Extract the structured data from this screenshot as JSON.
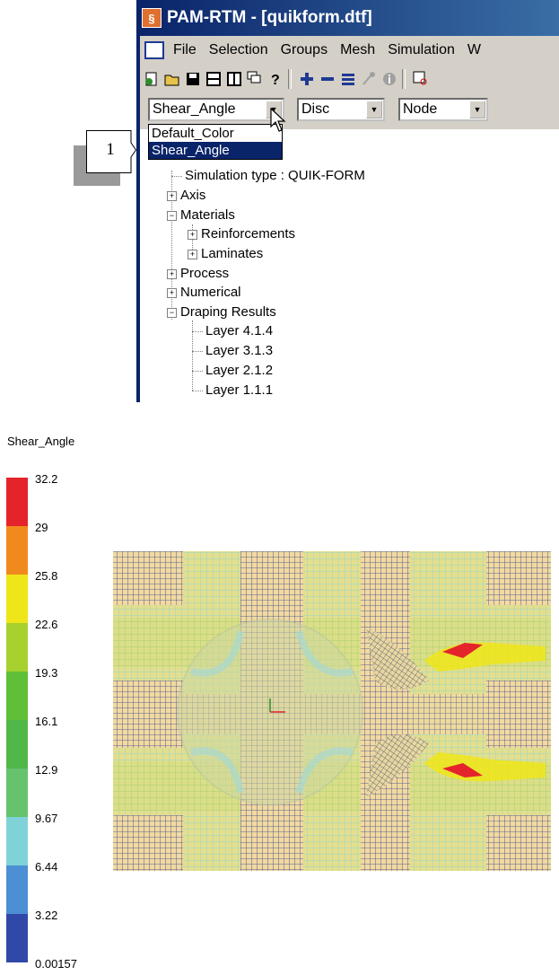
{
  "window": {
    "title": "PAM-RTM - [quikform.dtf]"
  },
  "menu": [
    "File",
    "Selection",
    "Groups",
    "Mesh",
    "Simulation",
    "W"
  ],
  "toolbar_icons": [
    "new-icon",
    "open-folder-icon",
    "save-icon",
    "split-horizontal-icon",
    "split-vertical-icon",
    "cascade-windows-icon",
    "help-icon",
    "add-icon",
    "remove-icon",
    "list-icon",
    "probe-icon",
    "info-icon",
    "zoom-icon"
  ],
  "combos": {
    "field": "Shear_Angle",
    "display": "Disc",
    "location": "Node"
  },
  "dropdown": {
    "options": [
      "Default_Color",
      "Shear_Angle"
    ],
    "selected": "Shear_Angle"
  },
  "callout": {
    "label": "1"
  },
  "tree": {
    "simulation_type": "Simulation type : QUIK-FORM",
    "axis": "Axis",
    "materials": "Materials",
    "reinforcements": "Reinforcements",
    "laminates": "Laminates",
    "process": "Process",
    "numerical": "Numerical",
    "draping_results": "Draping Results",
    "layers": [
      "Layer 4.1.4",
      "Layer 3.1.3",
      "Layer 2.1.2",
      "Layer 1.1.1"
    ]
  },
  "legend": {
    "title": "Shear_Angle",
    "labels": [
      "32.2",
      "29",
      "25.8",
      "22.6",
      "19.3",
      "16.1",
      "12.9",
      "9.67",
      "6.44",
      "3.22",
      "0.00157"
    ],
    "colors": [
      "#e5232b",
      "#f08a1e",
      "#eee619",
      "#a6d12e",
      "#5fbf36",
      "#4fb849",
      "#66c26d",
      "#7fd3d8",
      "#4d8fd4",
      "#3049a8"
    ]
  }
}
